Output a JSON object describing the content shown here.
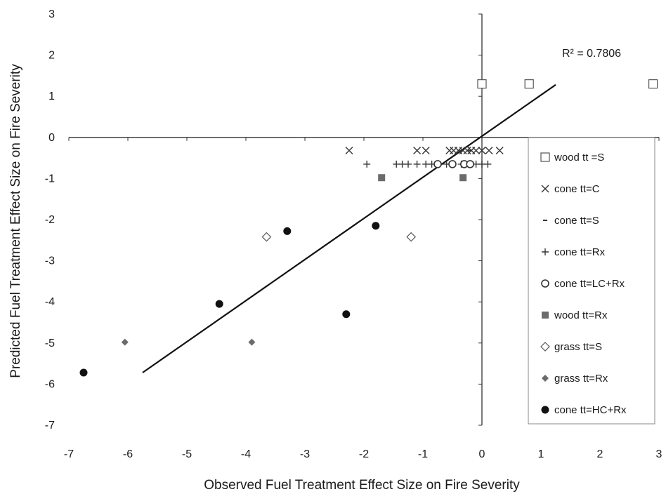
{
  "chart_data": {
    "type": "scatter",
    "title": "",
    "xlabel": "Observed Fuel Treatment Effect Size on Fire Severity",
    "ylabel": "Predicted Fuel Treatment Effect Size  on Fire Severity",
    "xlim": [
      -7,
      3
    ],
    "ylim": [
      -7,
      3
    ],
    "xticks": [
      -7,
      -6,
      -5,
      -4,
      -3,
      -2,
      -1,
      0,
      1,
      2,
      3
    ],
    "yticks": [
      -7,
      -6,
      -5,
      -4,
      -3,
      -2,
      -1,
      0,
      1,
      2,
      3
    ],
    "grid": false,
    "legend_position": "right",
    "annotation": "R² = 0.7806",
    "trendline": {
      "x": [
        -5.75,
        1.25
      ],
      "y": [
        -5.72,
        1.28
      ]
    },
    "series": [
      {
        "name": "wood tt =S",
        "marker": "square-open",
        "color": "#555555",
        "points": [
          [
            0.0,
            1.3
          ],
          [
            0.8,
            1.3
          ],
          [
            2.9,
            1.3
          ]
        ]
      },
      {
        "name": "cone tt=C",
        "marker": "x",
        "color": "#333333",
        "points": [
          [
            -2.25,
            -0.32
          ],
          [
            -1.1,
            -0.32
          ],
          [
            -0.95,
            -0.32
          ],
          [
            -0.55,
            -0.32
          ],
          [
            -0.48,
            -0.32
          ],
          [
            -0.4,
            -0.32
          ],
          [
            -0.32,
            -0.32
          ],
          [
            -0.25,
            -0.32
          ],
          [
            -0.18,
            -0.32
          ],
          [
            -0.1,
            -0.32
          ],
          [
            0.0,
            -0.32
          ],
          [
            0.12,
            -0.32
          ],
          [
            0.3,
            -0.32
          ]
        ]
      },
      {
        "name": "cone tt=S",
        "marker": "dash",
        "color": "#333333",
        "points": [
          [
            -0.35,
            -0.32
          ],
          [
            -0.2,
            -0.32
          ]
        ]
      },
      {
        "name": "cone tt=Rx",
        "marker": "plus",
        "color": "#333333",
        "points": [
          [
            -1.95,
            -0.65
          ],
          [
            -1.45,
            -0.65
          ],
          [
            -1.35,
            -0.65
          ],
          [
            -1.25,
            -0.65
          ],
          [
            -1.1,
            -0.65
          ],
          [
            -0.95,
            -0.65
          ],
          [
            -0.85,
            -0.65
          ],
          [
            -0.75,
            -0.65
          ],
          [
            -0.6,
            -0.65
          ],
          [
            -0.5,
            -0.65
          ],
          [
            -0.35,
            -0.65
          ],
          [
            -0.2,
            -0.65
          ],
          [
            -0.1,
            -0.65
          ],
          [
            0.0,
            -0.65
          ],
          [
            0.1,
            -0.65
          ]
        ]
      },
      {
        "name": "cone tt=LC+Rx",
        "marker": "circle-open",
        "color": "#333333",
        "points": [
          [
            -0.75,
            -0.65
          ],
          [
            -0.5,
            -0.65
          ],
          [
            -0.3,
            -0.65
          ],
          [
            -0.2,
            -0.65
          ]
        ]
      },
      {
        "name": "wood tt=Rx",
        "marker": "square-filled",
        "color": "#6b6b6b",
        "points": [
          [
            -1.7,
            -0.98
          ],
          [
            -0.32,
            -0.98
          ]
        ]
      },
      {
        "name": "grass tt=S",
        "marker": "diamond-open",
        "color": "#555555",
        "points": [
          [
            -3.65,
            -2.42
          ],
          [
            -1.2,
            -2.42
          ]
        ]
      },
      {
        "name": "grass tt=Rx",
        "marker": "diamond-filled",
        "color": "#6b6b6b",
        "points": [
          [
            -6.05,
            -4.98
          ],
          [
            -3.9,
            -4.98
          ]
        ]
      },
      {
        "name": "cone tt=HC+Rx",
        "marker": "circle-filled",
        "color": "#111111",
        "points": [
          [
            -6.75,
            -5.72
          ],
          [
            -4.45,
            -4.05
          ],
          [
            -3.3,
            -2.28
          ],
          [
            -2.3,
            -4.3
          ],
          [
            -1.8,
            -2.15
          ]
        ]
      }
    ]
  }
}
